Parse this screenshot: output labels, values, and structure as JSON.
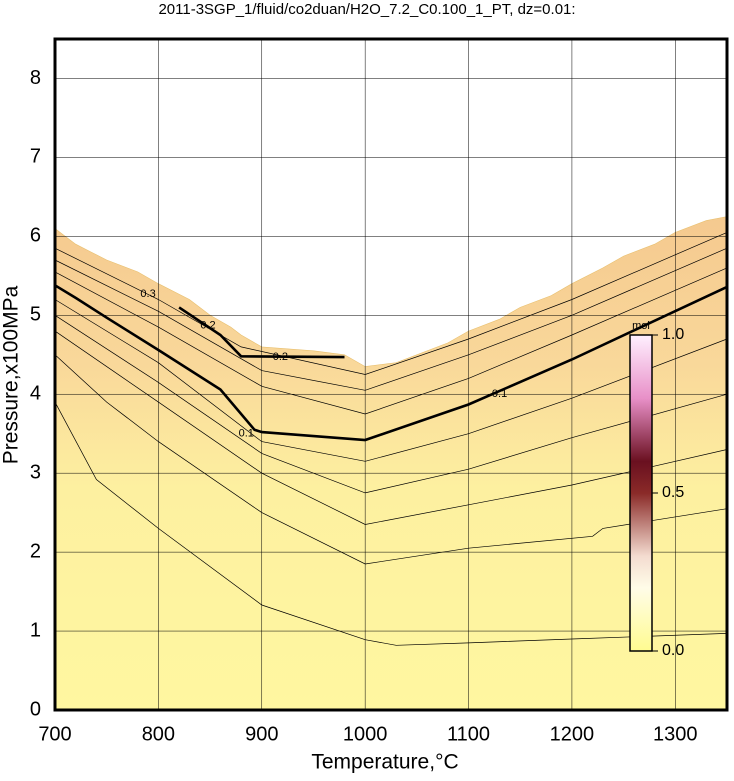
{
  "chart_data": {
    "type": "contour",
    "title": "2011-3SGP_1/fluid/co2duan/H2O_7.2_C0.100_1_PT, dz=0.01:",
    "x_label": "Temperature,°C",
    "y_label": "Pressure,x100MPa",
    "xlim": [
      700,
      1350
    ],
    "ylim": [
      0,
      8.5
    ],
    "xticks": [
      700,
      800,
      900,
      1000,
      1100,
      1200,
      1300
    ],
    "yticks": [
      0,
      1,
      2,
      3,
      4,
      5,
      6,
      7,
      8
    ],
    "grid": true,
    "boundary": {
      "x": [
        700,
        710,
        720,
        735,
        750,
        780,
        800,
        830,
        850,
        870,
        880,
        900,
        950,
        980,
        1000,
        1030,
        1050,
        1080,
        1100,
        1130,
        1150,
        1180,
        1200,
        1230,
        1250,
        1280,
        1300,
        1330,
        1350
      ],
      "y": [
        6.1,
        6.0,
        5.9,
        5.8,
        5.7,
        5.55,
        5.4,
        5.2,
        5.0,
        4.85,
        4.75,
        4.6,
        4.55,
        4.5,
        4.35,
        4.4,
        4.5,
        4.65,
        4.8,
        4.95,
        5.1,
        5.25,
        5.4,
        5.6,
        5.75,
        5.9,
        6.05,
        6.2,
        6.25
      ]
    },
    "contours": [
      {
        "bold": false,
        "x": [
          700,
          740,
          800,
          900,
          1000,
          1030,
          1100,
          1200,
          1350
        ],
        "y": [
          3.9,
          2.92,
          2.3,
          1.33,
          0.89,
          0.82,
          0.85,
          0.9,
          0.97
        ]
      },
      {
        "bold": false,
        "x": [
          700,
          750,
          800,
          900,
          1000,
          1100,
          1220,
          1230,
          1350
        ],
        "y": [
          4.5,
          3.9,
          3.4,
          2.5,
          1.85,
          2.05,
          2.2,
          2.3,
          2.55
        ]
      },
      {
        "bold": false,
        "x": [
          700,
          800,
          900,
          1000,
          1100,
          1200,
          1350
        ],
        "y": [
          4.8,
          3.9,
          3.0,
          2.35,
          2.6,
          2.85,
          3.3
        ]
      },
      {
        "bold": false,
        "x": [
          700,
          800,
          900,
          1000,
          1100,
          1200,
          1350
        ],
        "y": [
          5.0,
          4.15,
          3.25,
          2.75,
          3.05,
          3.45,
          4.0
        ]
      },
      {
        "bold": false,
        "x": [
          700,
          800,
          900,
          1000,
          1100,
          1200,
          1350
        ],
        "y": [
          5.2,
          4.4,
          3.4,
          3.15,
          3.5,
          3.95,
          4.7
        ]
      },
      {
        "bold": true,
        "x": [
          700,
          720,
          750,
          800,
          860,
          893,
          900,
          1000,
          1100,
          1200,
          1350
        ],
        "y": [
          5.38,
          5.22,
          4.97,
          4.56,
          4.06,
          3.55,
          3.52,
          3.42,
          3.87,
          4.44,
          5.36
        ]
      },
      {
        "bold": false,
        "x": [
          700,
          800,
          900,
          1000,
          1100,
          1200,
          1350
        ],
        "y": [
          5.55,
          4.85,
          4.1,
          3.75,
          4.2,
          4.75,
          5.6
        ]
      },
      {
        "bold": false,
        "x": [
          700,
          800,
          900,
          1000,
          1100,
          1200,
          1350
        ],
        "y": [
          5.7,
          5.05,
          4.3,
          4.05,
          4.5,
          5.0,
          5.85
        ]
      },
      {
        "bold": false,
        "x": [
          700,
          800,
          880,
          1000,
          1100,
          1200,
          1350
        ],
        "y": [
          5.85,
          5.2,
          4.6,
          4.25,
          4.7,
          5.2,
          6.05
        ]
      },
      {
        "bold": true,
        "x": [
          820,
          860,
          880,
          980
        ],
        "y": [
          5.1,
          4.75,
          4.48,
          4.47
        ]
      }
    ],
    "contour_labels": [
      {
        "text": "0.3",
        "x": 790,
        "y": 5.27
      },
      {
        "text": "0.2",
        "x": 848,
        "y": 4.87
      },
      {
        "text": "0.2",
        "x": 918,
        "y": 4.47
      },
      {
        "text": "0.1",
        "x": 885,
        "y": 3.5
      },
      {
        "text": "0.1",
        "x": 1130,
        "y": 4.0
      }
    ],
    "colorbar": {
      "label": "mol",
      "lim": [
        0,
        1
      ],
      "ticks": [
        {
          "value": 0,
          "label": "0.0"
        },
        {
          "value": 0.5,
          "label": "0.5"
        },
        {
          "value": 1,
          "label": "1.0"
        }
      ]
    }
  }
}
